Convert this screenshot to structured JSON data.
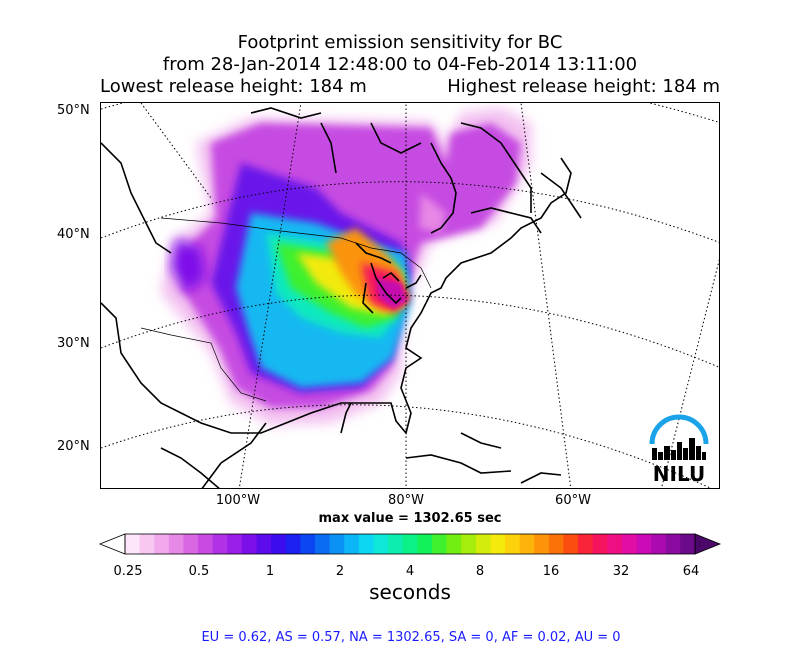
{
  "title": {
    "line1": "Footprint emission sensitivity for BC",
    "line2": "from 28-Jan-2014 12:48:00 to 04-Feb-2014 13:11:00",
    "lowest": "Lowest release height: 184 m",
    "highest": "Highest release height: 184 m"
  },
  "map": {
    "lat_labels": [
      "50°N",
      "40°N",
      "30°N",
      "20°N"
    ],
    "lon_labels": [
      "100°W",
      "80°W",
      "60°W"
    ],
    "max_value_text": "max value = 1302.65 sec",
    "logo_text": "NILU"
  },
  "colorbar": {
    "tick_labels": [
      "0.25",
      "0.5",
      "1",
      "2",
      "4",
      "8",
      "16",
      "32",
      "64"
    ],
    "unit": "seconds",
    "colors": [
      "#fde5fa",
      "#f8c8f3",
      "#f1a8ec",
      "#e787e6",
      "#d967e3",
      "#c94ae3",
      "#b131e6",
      "#9a1ee8",
      "#7d10ea",
      "#5c0bec",
      "#3a0cee",
      "#1c20f1",
      "#0b46f2",
      "#0a6cf3",
      "#0b92f4",
      "#0cb5f5",
      "#0dd6f2",
      "#0de8d8",
      "#0dedb0",
      "#0cf088",
      "#12f05a",
      "#3ff02e",
      "#72ee12",
      "#a4ed0c",
      "#d2ec0c",
      "#f4ea0c",
      "#fdd20a",
      "#fdb309",
      "#fc9308",
      "#fb7308",
      "#fa4d0f",
      "#f9233a",
      "#f5125f",
      "#ee1082",
      "#e10da4",
      "#cb0bb5",
      "#ac0ab0",
      "#8b0a9f",
      "#6b0a8a"
    ],
    "over_color": "#4a0868",
    "under_color": "#ffffff"
  },
  "regions_text": "EU = 0.62,  AS = 0.57,  NA = 1302.65,  SA = 0,  AF = 0.02,  AU = 0"
}
